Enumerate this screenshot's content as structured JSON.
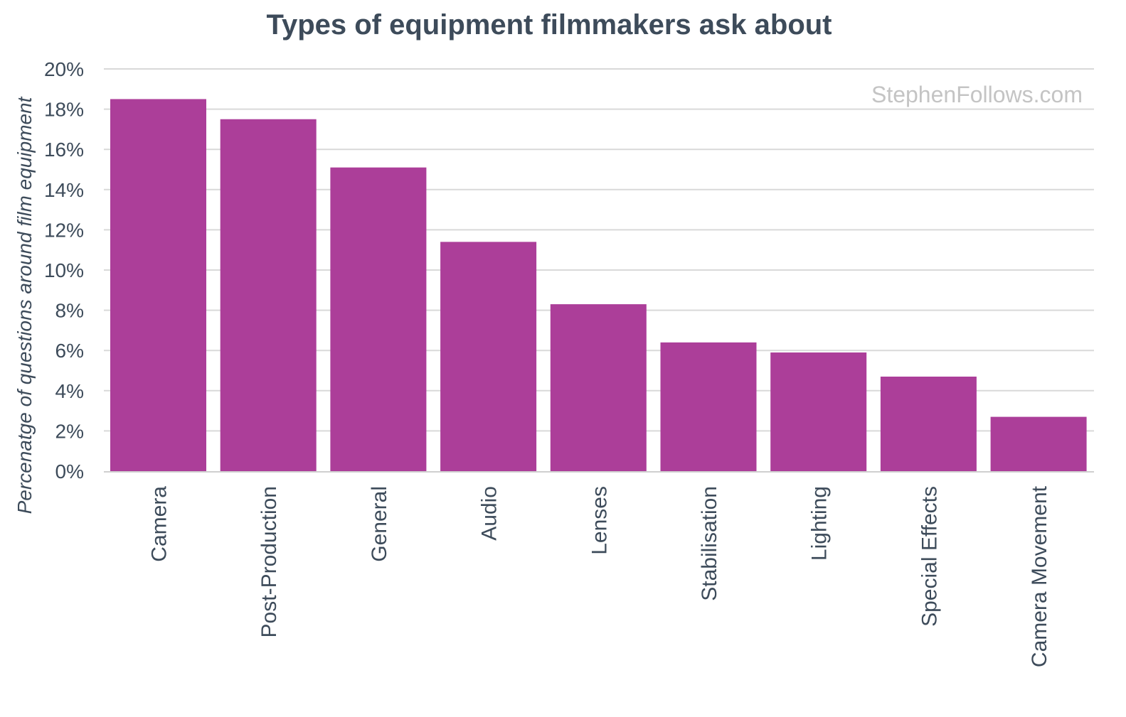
{
  "chart_data": {
    "type": "bar",
    "title": "Types of equipment filmmakers ask about",
    "xlabel": "",
    "ylabel": "Percenatge of questions around film equipment",
    "categories": [
      "Camera",
      "Post-Production",
      "General",
      "Audio",
      "Lenses",
      "Stabilisation",
      "Lighting",
      "Special Effects",
      "Camera Movement"
    ],
    "values": [
      18.5,
      17.5,
      15.1,
      11.4,
      8.3,
      6.4,
      5.9,
      4.7,
      2.7
    ],
    "ylim": [
      0,
      20
    ],
    "yticks": [
      0,
      2,
      4,
      6,
      8,
      10,
      12,
      14,
      16,
      18,
      20
    ],
    "tick_suffix": "%",
    "grid": true,
    "bar_color": "#ac3e99",
    "watermark": "StephenFollows.com"
  }
}
